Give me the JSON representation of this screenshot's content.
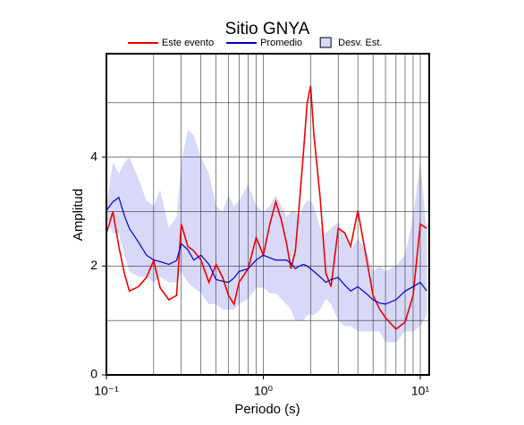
{
  "chart_data": {
    "type": "line",
    "title": "Sitio GNYA",
    "xlabel": "Periodo (s)",
    "ylabel": "Amplitud",
    "xscale": "log",
    "grid": true,
    "legend": "top",
    "xlim": [
      0.1,
      11.4
    ],
    "ylim": [
      0,
      5.9
    ],
    "xticks": [
      {
        "value": 0.1,
        "label": "10⁻¹"
      },
      {
        "value": 1,
        "label": "10⁰"
      },
      {
        "value": 10,
        "label": "10¹"
      }
    ],
    "xminor": [
      0.2,
      0.3,
      0.4,
      0.5,
      0.6,
      0.7,
      0.8,
      0.9,
      2,
      3,
      4,
      5,
      6,
      7,
      8,
      9
    ],
    "yticks": [
      0,
      2,
      4
    ],
    "yminor": [
      1,
      3,
      5
    ],
    "x": [
      0.1,
      0.11,
      0.12,
      0.13,
      0.14,
      0.16,
      0.18,
      0.2,
      0.22,
      0.25,
      0.28,
      0.3,
      0.33,
      0.36,
      0.4,
      0.45,
      0.5,
      0.55,
      0.6,
      0.65,
      0.7,
      0.8,
      0.9,
      1.0,
      1.1,
      1.2,
      1.3,
      1.4,
      1.5,
      1.6,
      1.7,
      1.8,
      1.9,
      2.0,
      2.1,
      2.3,
      2.5,
      2.7,
      3.0,
      3.3,
      3.6,
      4.0,
      4.5,
      5.0,
      5.5,
      6.0,
      7.0,
      8.0,
      9.0,
      10,
      11
    ],
    "band": {
      "name": "Desv. Est.",
      "color": "#d8d8f8",
      "lower": [
        2.9,
        2.6,
        2.6,
        2.2,
        1.9,
        1.8,
        1.8,
        1.7,
        1.8,
        1.7,
        1.7,
        1.9,
        1.7,
        1.6,
        1.5,
        1.3,
        1.3,
        1.2,
        1.2,
        1.2,
        1.3,
        1.4,
        1.6,
        1.6,
        1.5,
        1.5,
        1.4,
        1.3,
        1.2,
        1.0,
        1.0,
        1.0,
        1.1,
        1.1,
        1.1,
        1.2,
        1.4,
        1.3,
        1.0,
        0.9,
        0.9,
        0.8,
        0.8,
        0.8,
        0.8,
        0.6,
        0.6,
        0.8,
        0.8,
        0.9,
        1.1
      ],
      "upper": [
        3.1,
        3.9,
        3.7,
        3.9,
        4.0,
        3.6,
        3.2,
        3.1,
        3.4,
        2.7,
        2.9,
        3.9,
        4.5,
        4.4,
        4.0,
        3.7,
        3.1,
        3.0,
        3.3,
        3.1,
        3.2,
        3.5,
        3.1,
        3.0,
        3.1,
        3.3,
        3.1,
        2.9,
        3.0,
        3.0,
        2.9,
        3.1,
        3.2,
        3.2,
        3.1,
        2.7,
        2.6,
        2.7,
        2.8,
        2.6,
        2.3,
        2.5,
        2.3,
        1.9,
        2.0,
        1.9,
        2.0,
        2.2,
        2.9,
        3.9,
        2.6
      ]
    },
    "series": [
      {
        "name": "Este evento",
        "color": "#ee0000",
        "values": [
          2.6,
          3.0,
          2.36,
          1.87,
          1.54,
          1.62,
          1.79,
          2.1,
          1.6,
          1.38,
          1.46,
          2.77,
          2.36,
          2.28,
          2.11,
          1.7,
          2.03,
          1.79,
          1.46,
          1.3,
          1.7,
          1.95,
          2.52,
          2.2,
          2.77,
          3.18,
          2.85,
          2.44,
          1.95,
          2.28,
          3.18,
          4.08,
          4.98,
          5.31,
          4.41,
          3.26,
          1.87,
          1.62,
          2.69,
          2.61,
          2.36,
          3.02,
          2.2,
          1.46,
          1.21,
          1.05,
          0.84,
          0.97,
          1.46,
          2.77,
          2.69
        ]
      },
      {
        "name": "Promedio",
        "color": "#0000cc",
        "values": [
          3.02,
          3.18,
          3.26,
          2.93,
          2.69,
          2.44,
          2.2,
          2.11,
          2.08,
          2.03,
          2.1,
          2.41,
          2.3,
          2.11,
          2.2,
          2.03,
          1.75,
          1.72,
          1.7,
          1.78,
          1.9,
          1.95,
          2.11,
          2.2,
          2.15,
          2.11,
          2.11,
          2.11,
          2.05,
          1.95,
          2.0,
          2.03,
          2.0,
          1.95,
          1.9,
          1.8,
          1.7,
          1.75,
          1.79,
          1.65,
          1.54,
          1.62,
          1.5,
          1.38,
          1.32,
          1.3,
          1.38,
          1.54,
          1.62,
          1.7,
          1.54
        ]
      }
    ]
  }
}
